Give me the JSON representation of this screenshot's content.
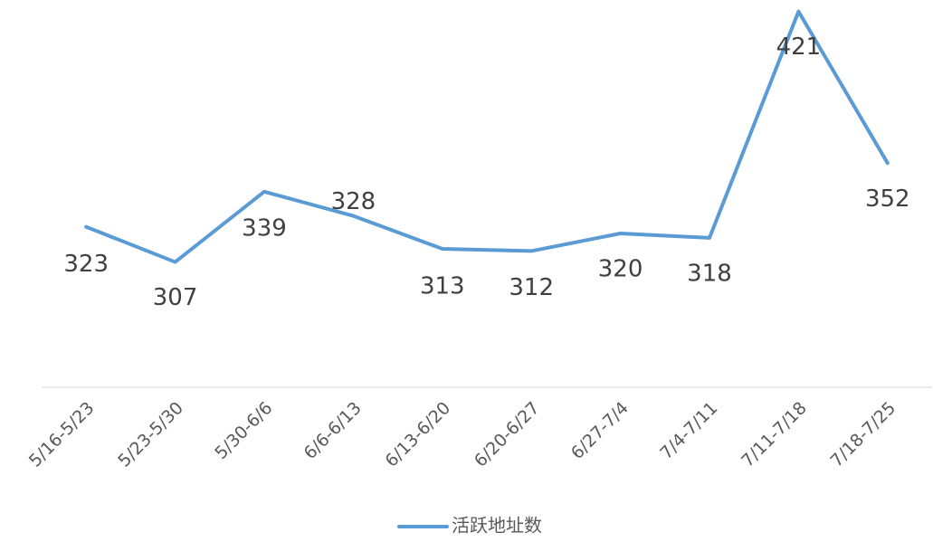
{
  "chart_data": {
    "type": "line",
    "categories": [
      "5/16-5/23",
      "5/23-5/30",
      "5/30-6/6",
      "6/6-6/13",
      "6/13-6/20",
      "6/20-6/27",
      "6/27-7/4",
      "7/4-7/11",
      "7/11-7/18",
      "7/18-7/25"
    ],
    "series": [
      {
        "name": "活跃地址数",
        "color": "#5b9bd5",
        "values": [
          323,
          307,
          339,
          328,
          313,
          312,
          320,
          318,
          421,
          352
        ]
      }
    ],
    "ylim": [
      250,
      425
    ],
    "legend": "bottom"
  }
}
